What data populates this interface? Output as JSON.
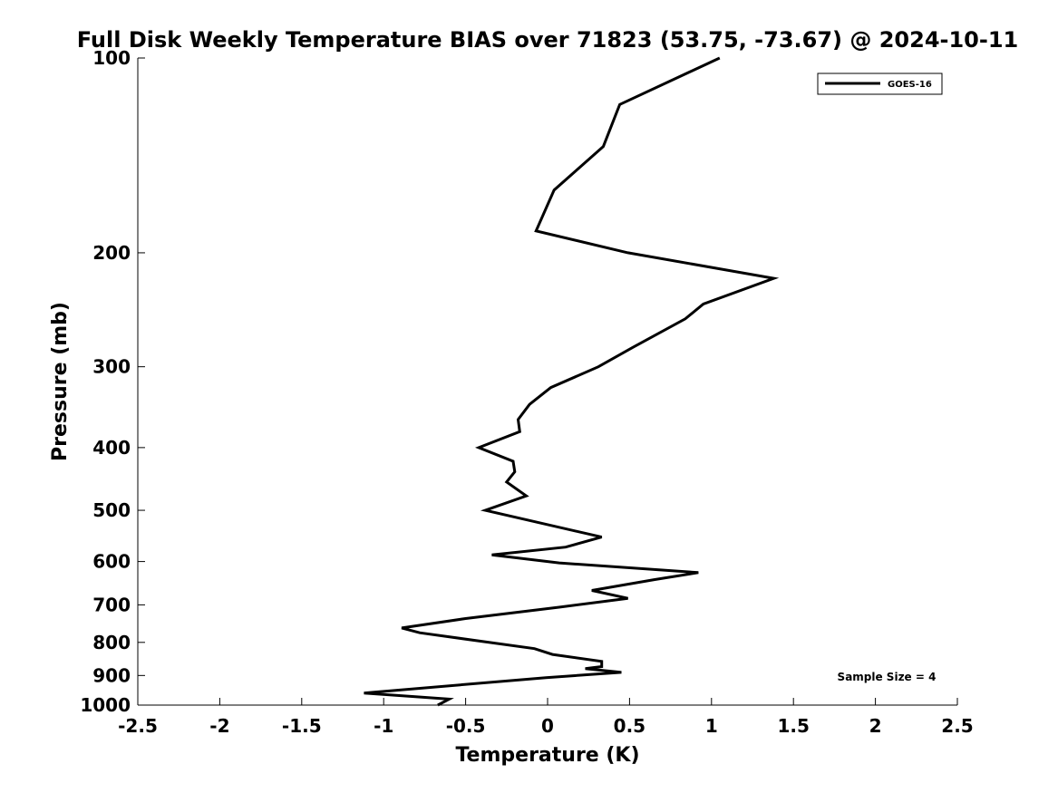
{
  "chart_data": {
    "type": "line",
    "title": "Full Disk Weekly Temperature BIAS over 71823 (53.75, -73.67) @ 2024-10-11",
    "xlabel": "Temperature (K)",
    "ylabel": "Pressure (mb)",
    "xlim": [
      -2.5,
      2.5
    ],
    "ylim": [
      100,
      1000
    ],
    "y_scale": "log",
    "y_reversed": true,
    "x_ticks": [
      -2.5,
      -2,
      -1.5,
      -1,
      -0.5,
      0,
      0.5,
      1,
      1.5,
      2,
      2.5
    ],
    "x_tick_labels": [
      "-2.5",
      "-2",
      "-1.5",
      "-1",
      "-0.5",
      "0",
      "0.5",
      "1",
      "1.5",
      "2",
      "2.5"
    ],
    "y_ticks": [
      100,
      200,
      300,
      400,
      500,
      600,
      700,
      800,
      900,
      1000
    ],
    "y_tick_labels": [
      "100",
      "200",
      "300",
      "400",
      "500",
      "600",
      "700",
      "800",
      "900",
      "1000"
    ],
    "grid": false,
    "legend_position": "top-right",
    "annotation": "Sample Size = 4",
    "series": [
      {
        "name": "GOES-16",
        "color": "#000000",
        "points": [
          [
            1.05,
            100
          ],
          [
            0.44,
            118
          ],
          [
            0.34,
            137
          ],
          [
            0.04,
            160
          ],
          [
            -0.07,
            185
          ],
          [
            0.49,
            200
          ],
          [
            1.38,
            219
          ],
          [
            0.95,
            240
          ],
          [
            0.84,
            253
          ],
          [
            0.52,
            280
          ],
          [
            0.31,
            300
          ],
          [
            0.02,
            323
          ],
          [
            -0.11,
            343
          ],
          [
            -0.18,
            362
          ],
          [
            -0.17,
            378
          ],
          [
            -0.42,
            400
          ],
          [
            -0.21,
            420
          ],
          [
            -0.2,
            436
          ],
          [
            -0.25,
            452
          ],
          [
            -0.13,
            475
          ],
          [
            -0.38,
            500
          ],
          [
            0.33,
            550
          ],
          [
            0.11,
            570
          ],
          [
            -0.34,
            586
          ],
          [
            0.07,
            603
          ],
          [
            0.92,
            624
          ],
          [
            0.65,
            640
          ],
          [
            0.27,
            665
          ],
          [
            0.49,
            684
          ],
          [
            0.07,
            706
          ],
          [
            -0.5,
            735
          ],
          [
            -0.89,
            760
          ],
          [
            -0.78,
            773
          ],
          [
            -0.08,
            818
          ],
          [
            0.03,
            835
          ],
          [
            0.33,
            856
          ],
          [
            0.33,
            872
          ],
          [
            0.23,
            878
          ],
          [
            0.45,
            890
          ],
          [
            -0.01,
            907
          ],
          [
            -1.12,
            958
          ],
          [
            -0.6,
            979
          ],
          [
            -0.67,
            1000
          ]
        ]
      }
    ]
  }
}
